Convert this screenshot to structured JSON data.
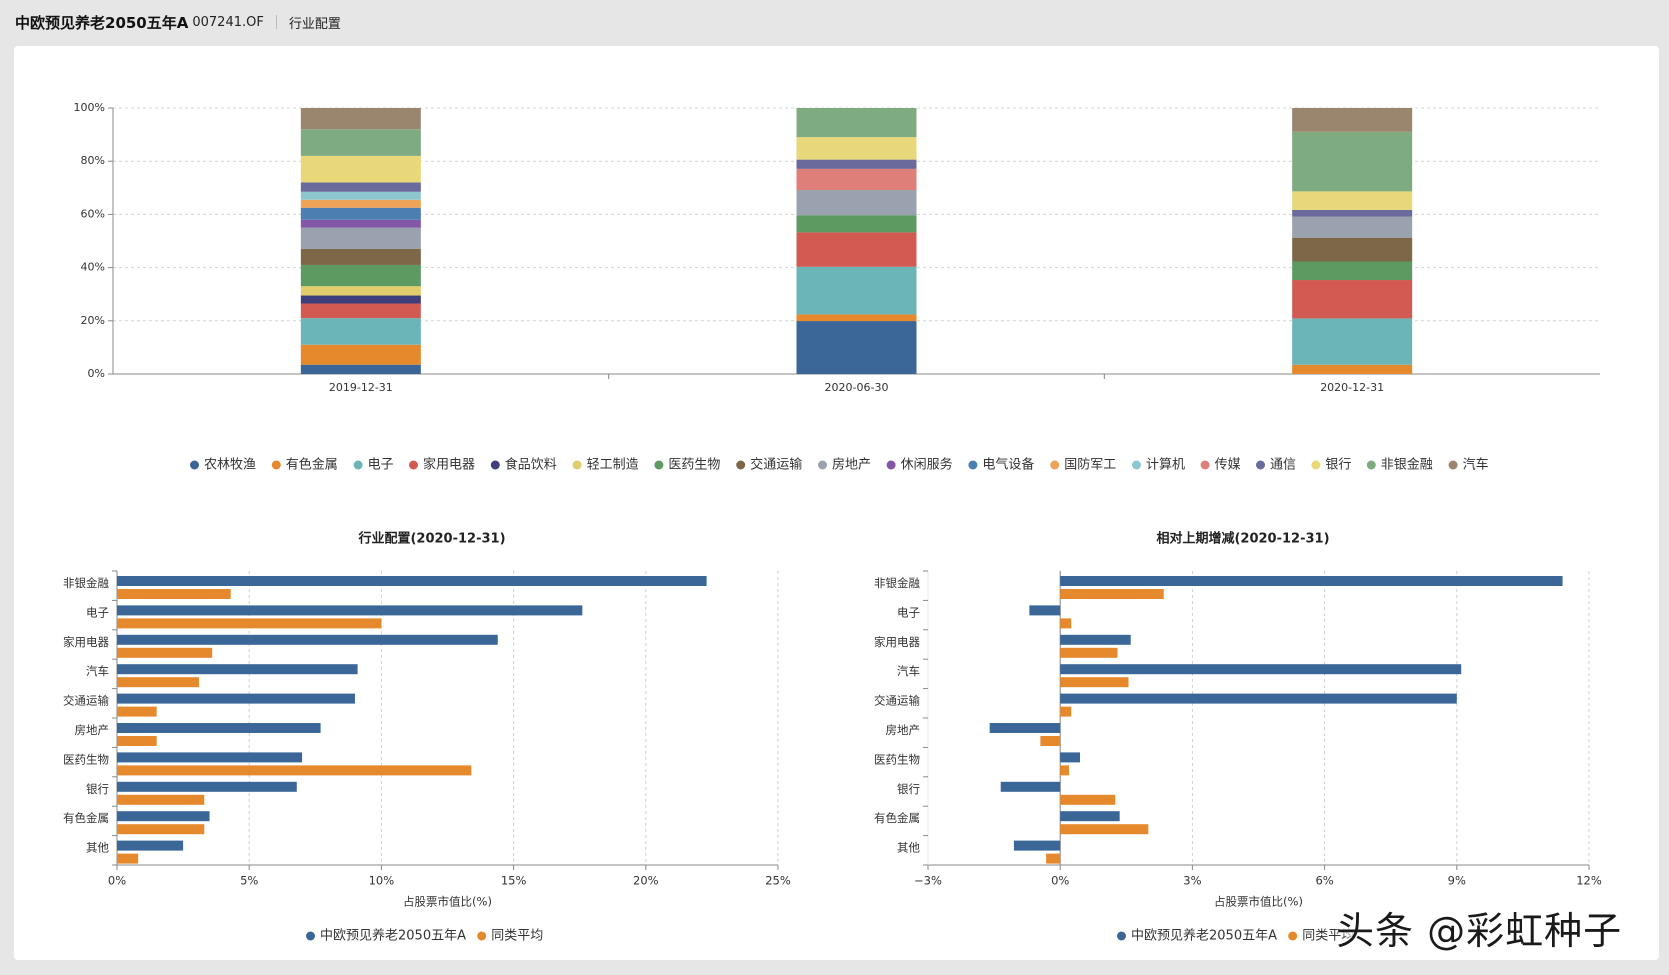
{
  "header": {
    "fund_name": "中欧预见养老2050五年A",
    "fund_code": "007241.OF",
    "section": "行业配置"
  },
  "watermark": "头条 @彩虹种子",
  "industries": [
    {
      "name": "农林牧渔",
      "color": "#3a6698"
    },
    {
      "name": "有色金属",
      "color": "#e6892c"
    },
    {
      "name": "电子",
      "color": "#6cb5b7"
    },
    {
      "name": "家用电器",
      "color": "#d25a53"
    },
    {
      "name": "食品饮料",
      "color": "#3e3f7b"
    },
    {
      "name": "轻工制造",
      "color": "#e1cd6c"
    },
    {
      "name": "医药生物",
      "color": "#5c9a62"
    },
    {
      "name": "交通运输",
      "color": "#7e6648"
    },
    {
      "name": "房地产",
      "color": "#9aa2af"
    },
    {
      "name": "休闲服务",
      "color": "#8456a8"
    },
    {
      "name": "电气设备",
      "color": "#4d7eb2"
    },
    {
      "name": "国防军工",
      "color": "#eda458"
    },
    {
      "name": "计算机",
      "color": "#8ec6cf"
    },
    {
      "name": "传媒",
      "color": "#de7f79"
    },
    {
      "name": "通信",
      "color": "#6a6b9c"
    },
    {
      "name": "银行",
      "color": "#e8d87a"
    },
    {
      "name": "非银金融",
      "color": "#7fab80"
    },
    {
      "name": "汽车",
      "color": "#9a856e"
    }
  ],
  "chart_data": [
    {
      "type": "bar",
      "stacked": true,
      "title": "",
      "xlabel": "",
      "ylabel": "",
      "categories": [
        "2019-12-31",
        "2020-06-30",
        "2020-12-31"
      ],
      "y_ticks": [
        "0%",
        "20%",
        "40%",
        "60%",
        "80%",
        "100%"
      ],
      "ylim": [
        0,
        100
      ],
      "legend_position": "bottom",
      "series": [
        {
          "name": "农林牧渔",
          "values": [
            3.5,
            20.0,
            0
          ]
        },
        {
          "name": "有色金属",
          "values": [
            7.5,
            2.5,
            3.5
          ]
        },
        {
          "name": "电子",
          "values": [
            10.0,
            18.0,
            17.5
          ]
        },
        {
          "name": "家用电器",
          "values": [
            5.5,
            13.0,
            14.5
          ]
        },
        {
          "name": "食品饮料",
          "values": [
            3.0,
            0,
            0
          ]
        },
        {
          "name": "轻工制造",
          "values": [
            3.5,
            0,
            0
          ]
        },
        {
          "name": "医药生物",
          "values": [
            8.0,
            6.5,
            7.0
          ]
        },
        {
          "name": "交通运输",
          "values": [
            6.0,
            0,
            9.0
          ]
        },
        {
          "name": "房地产",
          "values": [
            8.0,
            9.5,
            8.0
          ]
        },
        {
          "name": "休闲服务",
          "values": [
            3.0,
            0,
            0
          ]
        },
        {
          "name": "电气设备",
          "values": [
            4.5,
            0,
            0
          ]
        },
        {
          "name": "国防军工",
          "values": [
            3.0,
            0,
            0
          ]
        },
        {
          "name": "计算机",
          "values": [
            3.0,
            0,
            0
          ]
        },
        {
          "name": "传媒",
          "values": [
            0,
            8.0,
            0
          ]
        },
        {
          "name": "通信",
          "values": [
            3.5,
            3.5,
            2.5
          ]
        },
        {
          "name": "银行",
          "values": [
            10.0,
            8.5,
            7.0
          ]
        },
        {
          "name": "非银金融",
          "values": [
            10.0,
            11.0,
            22.5
          ]
        },
        {
          "name": "汽车",
          "values": [
            8.0,
            0,
            9.0
          ]
        }
      ]
    },
    {
      "type": "bar",
      "orientation": "horizontal",
      "title": "行业配置(2020-12-31)",
      "xlabel": "占股票市值比(%)",
      "ylabel": "",
      "categories": [
        "非银金融",
        "电子",
        "家用电器",
        "汽车",
        "交通运输",
        "房地产",
        "医药生物",
        "银行",
        "有色金属",
        "其他"
      ],
      "xlim": [
        0,
        25
      ],
      "x_ticks": [
        0,
        5,
        10,
        15,
        20,
        25
      ],
      "x_tick_labels": [
        "0%",
        "5%",
        "10%",
        "15%",
        "20%",
        "25%"
      ],
      "legend_position": "bottom",
      "series": [
        {
          "name": "中欧预见养老2050五年A",
          "color": "#3a6698",
          "values": [
            22.3,
            17.6,
            14.4,
            9.1,
            9.0,
            7.7,
            7.0,
            6.8,
            3.5,
            2.5
          ]
        },
        {
          "name": "同类平均",
          "color": "#e6892c",
          "values": [
            4.3,
            10.0,
            3.6,
            3.1,
            1.5,
            1.5,
            13.4,
            3.3,
            3.3,
            0.8
          ]
        }
      ]
    },
    {
      "type": "bar",
      "orientation": "horizontal",
      "title": "相对上期增减(2020-12-31)",
      "xlabel": "占股票市值比(%)",
      "ylabel": "",
      "categories": [
        "非银金融",
        "电子",
        "家用电器",
        "汽车",
        "交通运输",
        "房地产",
        "医药生物",
        "银行",
        "有色金属",
        "其他"
      ],
      "xlim": [
        -3,
        12
      ],
      "x_ticks": [
        -3,
        0,
        3,
        6,
        9,
        12
      ],
      "x_tick_labels": [
        "−3%",
        "0%",
        "3%",
        "6%",
        "9%",
        "12%"
      ],
      "legend_position": "bottom",
      "series": [
        {
          "name": "中欧预见养老2050五年A",
          "color": "#3a6698",
          "values": [
            11.4,
            -0.7,
            1.6,
            9.1,
            9.0,
            -1.6,
            0.45,
            -1.35,
            1.35,
            -1.05
          ]
        },
        {
          "name": "同类平均",
          "color": "#e6892c",
          "values": [
            2.35,
            0.25,
            1.3,
            1.55,
            0.25,
            -0.45,
            0.2,
            1.25,
            2.0,
            -0.32
          ]
        }
      ]
    }
  ]
}
